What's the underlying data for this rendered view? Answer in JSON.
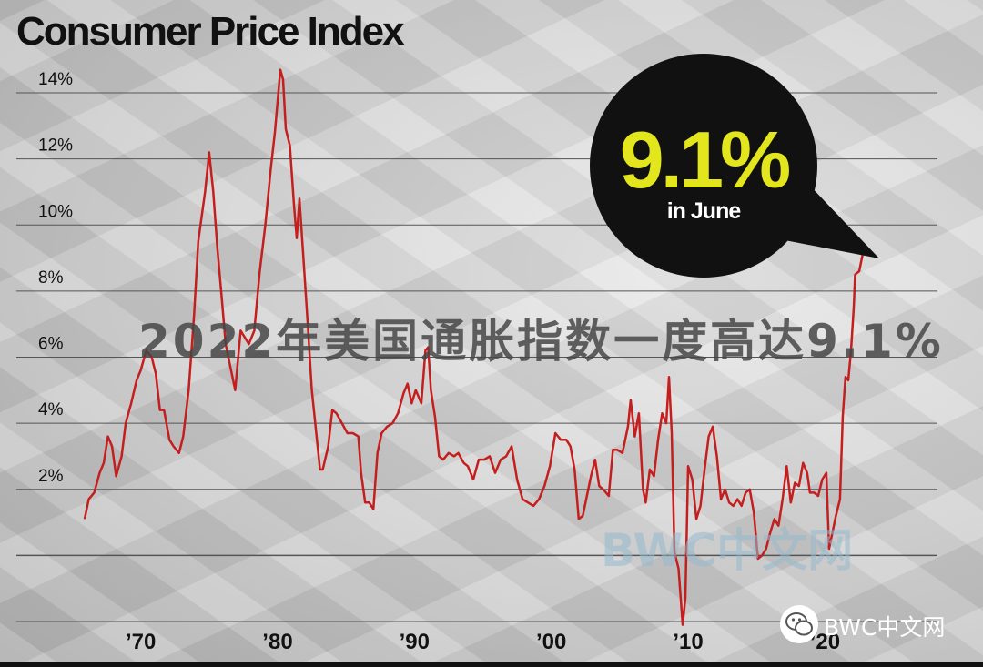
{
  "title": "Consumer Price Index",
  "overlay_caption": "2022年美国通胀指数一度高达9.1%",
  "watermark_center": "BWC中文网",
  "watermark_corner": "BWC中文网",
  "callout": {
    "value": "9.1%",
    "label": "in June",
    "value_color": "#e3e61c",
    "bg_color": "#111111"
  },
  "colors": {
    "line": "#c41e1e",
    "grid": "#555555",
    "text": "#111111"
  },
  "icons": [
    "wechat-icon"
  ],
  "chart_data": {
    "type": "line",
    "title": "Consumer Price Index",
    "xlabel": "",
    "ylabel": "",
    "xlim": [
      1965.0,
      2023.0
    ],
    "ylim": [
      -2,
      14
    ],
    "y_ticks": [
      {
        "v": 2,
        "label": "2%"
      },
      {
        "v": 4,
        "label": "4%"
      },
      {
        "v": 6,
        "label": "6%"
      },
      {
        "v": 8,
        "label": "8%"
      },
      {
        "v": 10,
        "label": "10%"
      },
      {
        "v": 12,
        "label": "12%"
      },
      {
        "v": 14,
        "label": "14%"
      }
    ],
    "x_ticks": [
      {
        "v": 1970,
        "label": "’70"
      },
      {
        "v": 1980,
        "label": "’80"
      },
      {
        "v": 1990,
        "label": "’90"
      },
      {
        "v": 2000,
        "label": "’00"
      },
      {
        "v": 2010,
        "label": "’10"
      },
      {
        "v": 2020,
        "label": "’20"
      }
    ],
    "grid_lines": [
      -2,
      0,
      2,
      4,
      6,
      8,
      10,
      12,
      14
    ],
    "series": [
      {
        "points": [
          [
            1965.9,
            1.1
          ],
          [
            1966.2,
            1.7
          ],
          [
            1966.6,
            1.9
          ],
          [
            1967.0,
            2.5
          ],
          [
            1967.3,
            2.8
          ],
          [
            1967.6,
            3.6
          ],
          [
            1967.9,
            3.3
          ],
          [
            1968.2,
            2.4
          ],
          [
            1968.6,
            3.0
          ],
          [
            1968.9,
            4.0
          ],
          [
            1969.3,
            4.6
          ],
          [
            1969.7,
            5.3
          ],
          [
            1970.0,
            5.6
          ],
          [
            1970.4,
            6.2
          ],
          [
            1970.8,
            6.0
          ],
          [
            1971.1,
            5.5
          ],
          [
            1971.4,
            4.4
          ],
          [
            1971.7,
            4.4
          ],
          [
            1972.1,
            3.5
          ],
          [
            1972.4,
            3.3
          ],
          [
            1972.8,
            3.1
          ],
          [
            1973.1,
            3.6
          ],
          [
            1973.5,
            5.0
          ],
          [
            1973.9,
            7.3
          ],
          [
            1974.2,
            9.5
          ],
          [
            1974.7,
            11.0
          ],
          [
            1975.0,
            12.2
          ],
          [
            1975.3,
            11.0
          ],
          [
            1975.6,
            9.3
          ],
          [
            1975.9,
            7.9
          ],
          [
            1976.2,
            6.4
          ],
          [
            1976.6,
            5.6
          ],
          [
            1976.9,
            5.0
          ],
          [
            1977.3,
            6.8
          ],
          [
            1977.6,
            6.6
          ],
          [
            1977.9,
            6.4
          ],
          [
            1978.3,
            6.8
          ],
          [
            1978.7,
            8.6
          ],
          [
            1979.1,
            10.0
          ],
          [
            1979.5,
            11.7
          ],
          [
            1979.8,
            12.8
          ],
          [
            1980.2,
            14.7
          ],
          [
            1980.4,
            14.4
          ],
          [
            1980.6,
            12.9
          ],
          [
            1980.9,
            12.4
          ],
          [
            1981.2,
            10.6
          ],
          [
            1981.4,
            9.6
          ],
          [
            1981.6,
            10.8
          ],
          [
            1981.9,
            8.9
          ],
          [
            1982.2,
            7.0
          ],
          [
            1982.5,
            5.0
          ],
          [
            1982.8,
            3.8
          ],
          [
            1983.1,
            2.6
          ],
          [
            1983.3,
            2.6
          ],
          [
            1983.7,
            3.3
          ],
          [
            1984.0,
            4.4
          ],
          [
            1984.3,
            4.3
          ],
          [
            1984.7,
            4.0
          ],
          [
            1985.1,
            3.7
          ],
          [
            1985.5,
            3.7
          ],
          [
            1985.9,
            3.6
          ],
          [
            1986.1,
            2.5
          ],
          [
            1986.4,
            1.6
          ],
          [
            1986.7,
            1.6
          ],
          [
            1987.0,
            1.4
          ],
          [
            1987.3,
            3.1
          ],
          [
            1987.6,
            3.7
          ],
          [
            1988.0,
            3.9
          ],
          [
            1988.4,
            4.0
          ],
          [
            1988.8,
            4.3
          ],
          [
            1989.2,
            4.9
          ],
          [
            1989.5,
            5.2
          ],
          [
            1989.8,
            4.6
          ],
          [
            1990.1,
            5.0
          ],
          [
            1990.5,
            4.6
          ],
          [
            1990.8,
            6.2
          ],
          [
            1991.0,
            6.3
          ],
          [
            1991.2,
            5.0
          ],
          [
            1991.5,
            4.2
          ],
          [
            1991.8,
            3.0
          ],
          [
            1992.1,
            2.9
          ],
          [
            1992.5,
            3.1
          ],
          [
            1992.9,
            3.0
          ],
          [
            1993.2,
            3.1
          ],
          [
            1993.6,
            2.8
          ],
          [
            1993.9,
            2.7
          ],
          [
            1994.3,
            2.3
          ],
          [
            1994.7,
            2.9
          ],
          [
            1995.1,
            2.9
          ],
          [
            1995.5,
            3.0
          ],
          [
            1995.9,
            2.5
          ],
          [
            1996.3,
            2.9
          ],
          [
            1996.7,
            3.0
          ],
          [
            1997.1,
            3.3
          ],
          [
            1997.5,
            2.3
          ],
          [
            1997.9,
            1.7
          ],
          [
            1998.3,
            1.6
          ],
          [
            1998.7,
            1.5
          ],
          [
            1999.1,
            1.7
          ],
          [
            1999.5,
            2.1
          ],
          [
            1999.9,
            2.7
          ],
          [
            2000.3,
            3.7
          ],
          [
            2000.7,
            3.5
          ],
          [
            2001.1,
            3.5
          ],
          [
            2001.4,
            3.3
          ],
          [
            2001.7,
            2.6
          ],
          [
            2002.0,
            1.1
          ],
          [
            2002.3,
            1.2
          ],
          [
            2002.6,
            1.8
          ],
          [
            2002.9,
            2.4
          ],
          [
            2003.2,
            2.9
          ],
          [
            2003.5,
            2.1
          ],
          [
            2003.8,
            2.0
          ],
          [
            2004.2,
            1.8
          ],
          [
            2004.5,
            3.2
          ],
          [
            2004.8,
            3.2
          ],
          [
            2005.2,
            3.1
          ],
          [
            2005.6,
            3.9
          ],
          [
            2005.8,
            4.7
          ],
          [
            2006.1,
            3.6
          ],
          [
            2006.4,
            4.3
          ],
          [
            2006.7,
            2.0
          ],
          [
            2006.9,
            1.6
          ],
          [
            2007.2,
            2.6
          ],
          [
            2007.5,
            2.4
          ],
          [
            2007.8,
            3.5
          ],
          [
            2008.1,
            4.3
          ],
          [
            2008.4,
            4.0
          ],
          [
            2008.6,
            5.4
          ],
          [
            2008.8,
            3.7
          ],
          [
            2009.0,
            0.1
          ],
          [
            2009.3,
            -0.4
          ],
          [
            2009.6,
            -2.1
          ],
          [
            2009.8,
            -1.3
          ],
          [
            2010.0,
            2.7
          ],
          [
            2010.3,
            2.3
          ],
          [
            2010.6,
            1.1
          ],
          [
            2010.9,
            1.5
          ],
          [
            2011.2,
            2.6
          ],
          [
            2011.5,
            3.6
          ],
          [
            2011.8,
            3.9
          ],
          [
            2012.1,
            3.0
          ],
          [
            2012.4,
            1.7
          ],
          [
            2012.7,
            2.0
          ],
          [
            2013.0,
            1.6
          ],
          [
            2013.3,
            1.5
          ],
          [
            2013.6,
            1.7
          ],
          [
            2013.9,
            1.5
          ],
          [
            2014.2,
            1.9
          ],
          [
            2014.5,
            2.0
          ],
          [
            2014.8,
            1.3
          ],
          [
            2015.1,
            -0.1
          ],
          [
            2015.4,
            0.0
          ],
          [
            2015.7,
            0.2
          ],
          [
            2016.0,
            0.7
          ],
          [
            2016.3,
            1.1
          ],
          [
            2016.6,
            0.9
          ],
          [
            2016.9,
            1.7
          ],
          [
            2017.2,
            2.7
          ],
          [
            2017.5,
            1.6
          ],
          [
            2017.8,
            2.2
          ],
          [
            2018.1,
            2.1
          ],
          [
            2018.4,
            2.8
          ],
          [
            2018.7,
            2.5
          ],
          [
            2018.9,
            1.9
          ],
          [
            2019.2,
            1.9
          ],
          [
            2019.5,
            1.8
          ],
          [
            2019.8,
            2.3
          ],
          [
            2020.1,
            2.5
          ],
          [
            2020.3,
            0.2
          ],
          [
            2020.5,
            0.6
          ],
          [
            2020.8,
            1.2
          ],
          [
            2021.1,
            1.7
          ],
          [
            2021.3,
            4.2
          ],
          [
            2021.5,
            5.4
          ],
          [
            2021.7,
            5.3
          ],
          [
            2021.9,
            6.2
          ],
          [
            2022.1,
            7.5
          ],
          [
            2022.2,
            8.5
          ],
          [
            2022.5,
            8.6
          ],
          [
            2022.75,
            9.1
          ]
        ]
      }
    ]
  }
}
